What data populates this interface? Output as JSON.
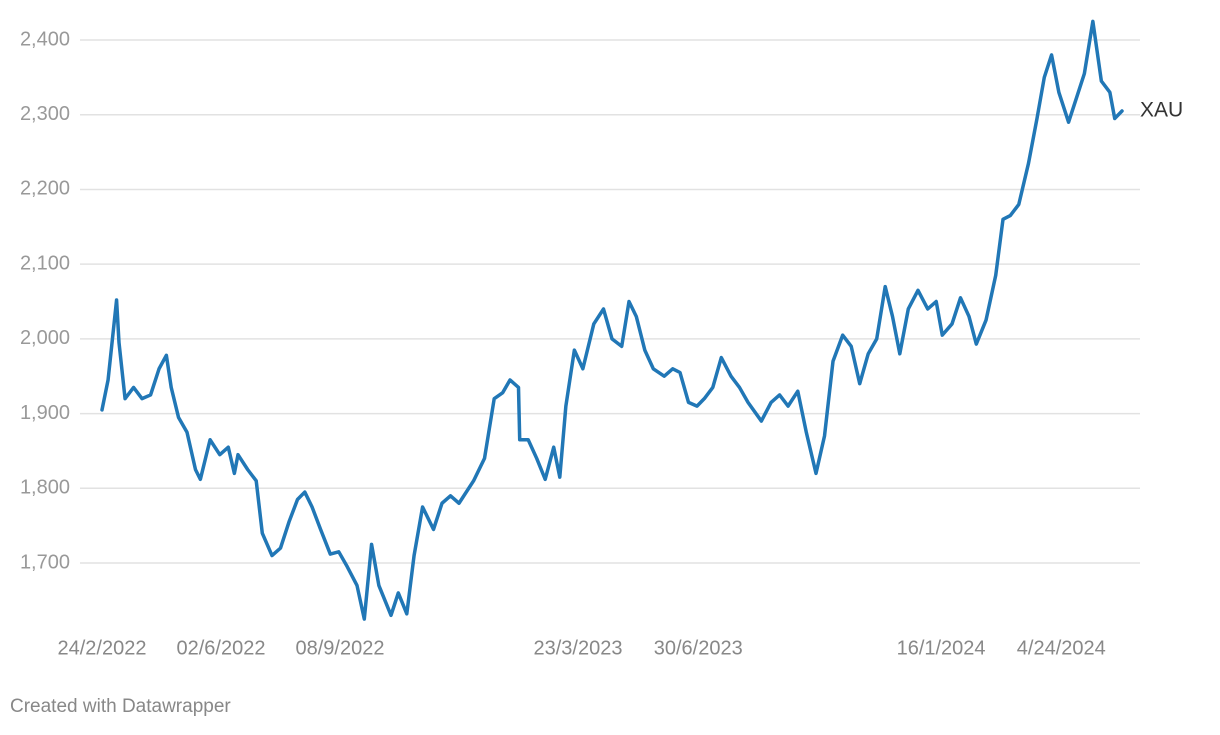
{
  "chart_data": {
    "type": "line",
    "x": [
      "2022-02-24",
      "2022-03-01",
      "2022-03-08",
      "2022-03-10",
      "2022-03-15",
      "2022-03-22",
      "2022-03-29",
      "2022-04-05",
      "2022-04-12",
      "2022-04-18",
      "2022-04-22",
      "2022-04-28",
      "2022-05-05",
      "2022-05-12",
      "2022-05-16",
      "2022-05-24",
      "2022-06-01",
      "2022-06-08",
      "2022-06-13",
      "2022-06-16",
      "2022-06-24",
      "2022-07-01",
      "2022-07-06",
      "2022-07-14",
      "2022-07-21",
      "2022-07-28",
      "2022-08-04",
      "2022-08-10",
      "2022-08-16",
      "2022-08-23",
      "2022-08-31",
      "2022-09-07",
      "2022-09-14",
      "2022-09-22",
      "2022-09-28",
      "2022-10-04",
      "2022-10-10",
      "2022-10-20",
      "2022-10-26",
      "2022-11-02",
      "2022-11-08",
      "2022-11-15",
      "2022-11-24",
      "2022-12-01",
      "2022-12-08",
      "2022-12-15",
      "2022-12-27",
      "2023-01-05",
      "2023-01-13",
      "2023-01-20",
      "2023-01-26",
      "2023-02-02",
      "2023-02-03",
      "2023-02-10",
      "2023-02-17",
      "2023-02-24",
      "2023-03-03",
      "2023-03-08",
      "2023-03-13",
      "2023-03-20",
      "2023-03-27",
      "2023-04-05",
      "2023-04-13",
      "2023-04-20",
      "2023-04-28",
      "2023-05-04",
      "2023-05-10",
      "2023-05-17",
      "2023-05-24",
      "2023-06-02",
      "2023-06-09",
      "2023-06-15",
      "2023-06-22",
      "2023-06-29",
      "2023-07-05",
      "2023-07-12",
      "2023-07-19",
      "2023-07-27",
      "2023-08-03",
      "2023-08-10",
      "2023-08-21",
      "2023-08-29",
      "2023-09-05",
      "2023-09-12",
      "2023-09-20",
      "2023-09-27",
      "2023-10-05",
      "2023-10-12",
      "2023-10-19",
      "2023-10-27",
      "2023-11-03",
      "2023-11-10",
      "2023-11-17",
      "2023-11-24",
      "2023-12-01",
      "2023-12-07",
      "2023-12-13",
      "2023-12-20",
      "2023-12-28",
      "2024-01-05",
      "2024-01-12",
      "2024-01-17",
      "2024-01-25",
      "2024-02-01",
      "2024-02-08",
      "2024-02-14",
      "2024-02-22",
      "2024-03-01",
      "2024-03-07",
      "2024-03-13",
      "2024-03-20",
      "2024-03-28",
      "2024-04-04",
      "2024-04-10",
      "2024-04-16",
      "2024-04-22",
      "2024-04-30",
      "2024-05-06",
      "2024-05-13",
      "2024-05-20",
      "2024-05-27",
      "2024-06-03",
      "2024-06-07",
      "2024-06-13"
    ],
    "series": [
      {
        "name": "XAU",
        "color": "#2177b6",
        "values": [
          1905,
          1945,
          2052,
          1995,
          1920,
          1935,
          1920,
          1925,
          1960,
          1978,
          1935,
          1895,
          1875,
          1825,
          1812,
          1865,
          1845,
          1855,
          1820,
          1845,
          1825,
          1810,
          1740,
          1710,
          1720,
          1755,
          1785,
          1795,
          1775,
          1745,
          1712,
          1715,
          1695,
          1670,
          1625,
          1725,
          1670,
          1630,
          1660,
          1632,
          1710,
          1775,
          1745,
          1780,
          1790,
          1780,
          1810,
          1840,
          1920,
          1928,
          1945,
          1935,
          1865,
          1865,
          1840,
          1812,
          1855,
          1815,
          1910,
          1985,
          1960,
          2020,
          2040,
          2000,
          1990,
          2050,
          2030,
          1985,
          1960,
          1950,
          1960,
          1955,
          1915,
          1910,
          1920,
          1935,
          1975,
          1950,
          1935,
          1915,
          1890,
          1915,
          1925,
          1910,
          1930,
          1875,
          1820,
          1870,
          1970,
          2005,
          1990,
          1940,
          1980,
          2000,
          2070,
          2030,
          1980,
          2040,
          2065,
          2040,
          2050,
          2005,
          2020,
          2055,
          2030,
          1993,
          2025,
          2085,
          2160,
          2165,
          2180,
          2235,
          2295,
          2350,
          2380,
          2330,
          2290,
          2320,
          2355,
          2425,
          2345,
          2330,
          2295,
          2305
        ]
      }
    ],
    "xlim": [
      "2022-02-24",
      "2024-06-13"
    ],
    "xticks": [
      {
        "value": "2022-02-24",
        "label": "24/2/2022"
      },
      {
        "value": "2022-06-02",
        "label": "02/6/2022"
      },
      {
        "value": "2022-09-08",
        "label": "08/9/2022"
      },
      {
        "value": "2023-03-23",
        "label": "23/3/2023"
      },
      {
        "value": "2023-06-30",
        "label": "30/6/2023"
      },
      {
        "value": "2024-01-16",
        "label": "16/1/2024"
      },
      {
        "value": "2024-04-24",
        "label": "4/24/2024"
      }
    ],
    "ylim": [
      1620,
      2430
    ],
    "yticks": [
      {
        "value": 1700,
        "label": "1,700"
      },
      {
        "value": 1800,
        "label": "1,800"
      },
      {
        "value": 1900,
        "label": "1,900"
      },
      {
        "value": 2000,
        "label": "2,000"
      },
      {
        "value": 2100,
        "label": "2,100"
      },
      {
        "value": 2200,
        "label": "2,200"
      },
      {
        "value": 2300,
        "label": "2,300"
      },
      {
        "value": 2400,
        "label": "2,400"
      }
    ],
    "grid": true
  },
  "footer": "Created with Datawrapper"
}
